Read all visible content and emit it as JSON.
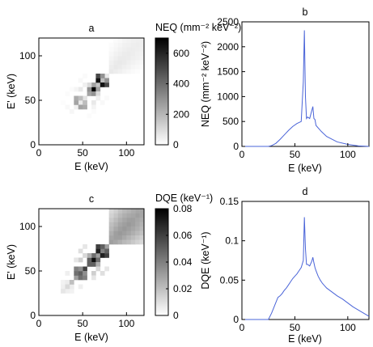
{
  "chart_data": [
    {
      "id": "a",
      "type": "heatmap",
      "title": "a",
      "colorbar_title": "NEQ (mm⁻² keV⁻²)",
      "xlabel": "E (keV)",
      "ylabel": "E' (keV)",
      "xlim": [
        0,
        120
      ],
      "ylim": [
        0,
        120
      ],
      "x_ticks": [
        "0",
        "50",
        "100"
      ],
      "y_ticks": [
        "0",
        "50",
        "100"
      ],
      "color_range": [
        0,
        700
      ],
      "colorbar_ticks": [
        "0",
        "200",
        "400",
        "600"
      ],
      "cell_size_keV": 5,
      "cells": [
        [
          25,
          45,
          8
        ],
        [
          30,
          40,
          18
        ],
        [
          35,
          35,
          25
        ],
        [
          40,
          40,
          40
        ],
        [
          45,
          45,
          60
        ],
        [
          50,
          50,
          80
        ],
        [
          55,
          55,
          250
        ],
        [
          60,
          60,
          700
        ],
        [
          65,
          65,
          160
        ],
        [
          70,
          70,
          180
        ],
        [
          75,
          75,
          60
        ],
        [
          40,
          45,
          250
        ],
        [
          45,
          40,
          250
        ],
        [
          40,
          50,
          230
        ],
        [
          50,
          40,
          230
        ],
        [
          45,
          50,
          180
        ],
        [
          50,
          45,
          180
        ],
        [
          55,
          60,
          300
        ],
        [
          60,
          55,
          300
        ],
        [
          60,
          65,
          250
        ],
        [
          65,
          60,
          250
        ],
        [
          55,
          65,
          100
        ],
        [
          65,
          55,
          100
        ],
        [
          65,
          70,
          650
        ],
        [
          70,
          65,
          650
        ],
        [
          65,
          75,
          500
        ],
        [
          75,
          65,
          500
        ],
        [
          70,
          75,
          300
        ],
        [
          75,
          70,
          300
        ],
        [
          45,
          60,
          60
        ],
        [
          60,
          45,
          60
        ],
        [
          50,
          65,
          40
        ],
        [
          65,
          50,
          40
        ],
        [
          40,
          60,
          30
        ],
        [
          60,
          40,
          30
        ],
        [
          30,
          55,
          10
        ],
        [
          55,
          30,
          10
        ],
        [
          35,
          60,
          10
        ],
        [
          60,
          35,
          10
        ],
        [
          45,
          70,
          20
        ],
        [
          70,
          45,
          20
        ],
        [
          50,
          75,
          15
        ],
        [
          75,
          50,
          15
        ],
        [
          80,
          80,
          60
        ],
        [
          85,
          85,
          60
        ],
        [
          90,
          90,
          60
        ],
        [
          95,
          95,
          55
        ],
        [
          100,
          100,
          55
        ],
        [
          105,
          105,
          50
        ],
        [
          110,
          110,
          50
        ],
        [
          115,
          115,
          45
        ],
        [
          80,
          85,
          50
        ],
        [
          85,
          80,
          50
        ],
        [
          85,
          90,
          55
        ],
        [
          90,
          85,
          55
        ],
        [
          90,
          95,
          55
        ],
        [
          95,
          90,
          55
        ],
        [
          95,
          100,
          52
        ],
        [
          100,
          95,
          52
        ],
        [
          100,
          105,
          50
        ],
        [
          105,
          100,
          50
        ],
        [
          105,
          110,
          48
        ],
        [
          110,
          105,
          48
        ],
        [
          110,
          115,
          45
        ],
        [
          115,
          110,
          45
        ],
        [
          80,
          90,
          40
        ],
        [
          90,
          80,
          40
        ],
        [
          85,
          95,
          45
        ],
        [
          95,
          85,
          45
        ],
        [
          90,
          100,
          45
        ],
        [
          100,
          90,
          45
        ],
        [
          95,
          105,
          45
        ],
        [
          105,
          95,
          45
        ],
        [
          100,
          110,
          42
        ],
        [
          110,
          100,
          42
        ],
        [
          105,
          115,
          40
        ],
        [
          115,
          105,
          40
        ],
        [
          80,
          95,
          30
        ],
        [
          95,
          80,
          30
        ],
        [
          85,
          100,
          35
        ],
        [
          100,
          85,
          35
        ],
        [
          90,
          105,
          35
        ],
        [
          105,
          90,
          35
        ],
        [
          95,
          110,
          38
        ],
        [
          110,
          95,
          38
        ],
        [
          100,
          115,
          35
        ],
        [
          115,
          100,
          35
        ],
        [
          80,
          100,
          22
        ],
        [
          100,
          80,
          22
        ],
        [
          85,
          105,
          25
        ],
        [
          105,
          85,
          25
        ],
        [
          90,
          110,
          28
        ],
        [
          110,
          90,
          28
        ],
        [
          95,
          115,
          30
        ],
        [
          115,
          95,
          30
        ],
        [
          80,
          105,
          14
        ],
        [
          105,
          80,
          14
        ],
        [
          85,
          110,
          18
        ],
        [
          110,
          85,
          18
        ],
        [
          90,
          115,
          20
        ],
        [
          115,
          90,
          20
        ],
        [
          80,
          110,
          8
        ],
        [
          110,
          80,
          8
        ],
        [
          85,
          115,
          10
        ],
        [
          115,
          85,
          10
        ]
      ]
    },
    {
      "id": "b",
      "type": "line",
      "title": "b",
      "xlabel": "E (keV)",
      "ylabel": "NEQ (mm⁻² keV⁻²)",
      "xlim": [
        0,
        120
      ],
      "ylim": [
        0,
        2500
      ],
      "x_ticks": [
        "0",
        "50",
        "100"
      ],
      "y_ticks": [
        "0",
        "500",
        "1000",
        "1500",
        "2000",
        "2500"
      ],
      "color": "#4a64d8",
      "x": [
        0,
        25,
        28,
        32,
        36,
        40,
        44,
        48,
        52,
        56,
        58,
        59,
        60,
        61,
        62,
        64,
        66,
        67,
        68,
        69,
        70,
        75,
        80,
        90,
        100,
        110,
        120
      ],
      "y": [
        0,
        0,
        15,
        60,
        140,
        230,
        320,
        400,
        460,
        500,
        1300,
        2330,
        1000,
        560,
        590,
        560,
        720,
        800,
        560,
        540,
        420,
        300,
        200,
        90,
        40,
        10,
        0
      ]
    },
    {
      "id": "c",
      "type": "heatmap",
      "title": "c",
      "colorbar_title": "DQE (keV⁻¹)",
      "xlabel": "E (keV)",
      "ylabel": "E' (keV)",
      "xlim": [
        0,
        120
      ],
      "ylim": [
        0,
        120
      ],
      "x_ticks": [
        "0",
        "50",
        "100"
      ],
      "y_ticks": [
        "0",
        "50",
        "100"
      ],
      "color_range": [
        0,
        0.08
      ],
      "colorbar_ticks": [
        "0",
        "0.02",
        "0.04",
        "0.06",
        "0.08"
      ],
      "cell_size_keV": 5,
      "cells": [
        [
          25,
          30,
          0.005
        ],
        [
          30,
          25,
          0.005
        ],
        [
          25,
          35,
          0.004
        ],
        [
          35,
          25,
          0.004
        ],
        [
          30,
          35,
          0.006
        ],
        [
          35,
          30,
          0.006
        ],
        [
          30,
          45,
          0.005
        ],
        [
          45,
          30,
          0.005
        ],
        [
          25,
          25,
          0.008
        ],
        [
          30,
          30,
          0.012
        ],
        [
          35,
          35,
          0.02
        ],
        [
          40,
          40,
          0.03
        ],
        [
          45,
          45,
          0.05
        ],
        [
          50,
          50,
          0.06
        ],
        [
          55,
          55,
          0.05
        ],
        [
          60,
          60,
          0.075
        ],
        [
          65,
          65,
          0.03
        ],
        [
          70,
          70,
          0.04
        ],
        [
          75,
          75,
          0.03
        ],
        [
          40,
          45,
          0.045
        ],
        [
          45,
          40,
          0.045
        ],
        [
          40,
          50,
          0.04
        ],
        [
          50,
          40,
          0.04
        ],
        [
          45,
          50,
          0.035
        ],
        [
          50,
          45,
          0.035
        ],
        [
          55,
          60,
          0.05
        ],
        [
          60,
          55,
          0.05
        ],
        [
          60,
          65,
          0.045
        ],
        [
          65,
          60,
          0.045
        ],
        [
          55,
          65,
          0.025
        ],
        [
          65,
          55,
          0.025
        ],
        [
          65,
          70,
          0.07
        ],
        [
          70,
          65,
          0.07
        ],
        [
          65,
          75,
          0.06
        ],
        [
          75,
          65,
          0.06
        ],
        [
          70,
          75,
          0.05
        ],
        [
          75,
          70,
          0.05
        ],
        [
          45,
          60,
          0.015
        ],
        [
          60,
          45,
          0.015
        ],
        [
          50,
          65,
          0.012
        ],
        [
          65,
          50,
          0.012
        ],
        [
          40,
          60,
          0.008
        ],
        [
          60,
          40,
          0.008
        ],
        [
          45,
          70,
          0.01
        ],
        [
          70,
          45,
          0.01
        ],
        [
          50,
          75,
          0.008
        ],
        [
          75,
          50,
          0.008
        ],
        [
          80,
          80,
          0.03
        ],
        [
          85,
          85,
          0.03
        ],
        [
          90,
          90,
          0.032
        ],
        [
          95,
          95,
          0.032
        ],
        [
          100,
          100,
          0.032
        ],
        [
          105,
          105,
          0.03
        ],
        [
          110,
          110,
          0.03
        ],
        [
          115,
          115,
          0.028
        ],
        [
          80,
          85,
          0.028
        ],
        [
          85,
          80,
          0.028
        ],
        [
          85,
          90,
          0.03
        ],
        [
          90,
          85,
          0.03
        ],
        [
          90,
          95,
          0.03
        ],
        [
          95,
          90,
          0.03
        ],
        [
          95,
          100,
          0.03
        ],
        [
          100,
          95,
          0.03
        ],
        [
          100,
          105,
          0.03
        ],
        [
          105,
          100,
          0.03
        ],
        [
          105,
          110,
          0.028
        ],
        [
          110,
          105,
          0.028
        ],
        [
          110,
          115,
          0.028
        ],
        [
          115,
          110,
          0.028
        ],
        [
          80,
          90,
          0.025
        ],
        [
          90,
          80,
          0.025
        ],
        [
          85,
          95,
          0.027
        ],
        [
          95,
          85,
          0.027
        ],
        [
          90,
          100,
          0.028
        ],
        [
          100,
          90,
          0.028
        ],
        [
          95,
          105,
          0.028
        ],
        [
          105,
          95,
          0.028
        ],
        [
          100,
          110,
          0.027
        ],
        [
          110,
          100,
          0.027
        ],
        [
          105,
          115,
          0.026
        ],
        [
          115,
          105,
          0.026
        ],
        [
          80,
          95,
          0.022
        ],
        [
          95,
          80,
          0.022
        ],
        [
          85,
          100,
          0.024
        ],
        [
          100,
          85,
          0.024
        ],
        [
          90,
          105,
          0.025
        ],
        [
          105,
          90,
          0.025
        ],
        [
          95,
          110,
          0.025
        ],
        [
          110,
          95,
          0.025
        ],
        [
          100,
          115,
          0.024
        ],
        [
          115,
          100,
          0.024
        ],
        [
          80,
          100,
          0.02
        ],
        [
          100,
          80,
          0.02
        ],
        [
          85,
          105,
          0.021
        ],
        [
          105,
          85,
          0.021
        ],
        [
          90,
          110,
          0.022
        ],
        [
          110,
          90,
          0.022
        ],
        [
          95,
          115,
          0.022
        ],
        [
          115,
          95,
          0.022
        ],
        [
          80,
          105,
          0.017
        ],
        [
          105,
          80,
          0.017
        ],
        [
          85,
          110,
          0.018
        ],
        [
          110,
          85,
          0.018
        ],
        [
          90,
          115,
          0.019
        ],
        [
          115,
          90,
          0.019
        ],
        [
          80,
          110,
          0.014
        ],
        [
          110,
          80,
          0.014
        ],
        [
          85,
          115,
          0.015
        ],
        [
          115,
          85,
          0.015
        ],
        [
          80,
          115,
          0.012
        ],
        [
          115,
          80,
          0.012
        ]
      ]
    },
    {
      "id": "d",
      "type": "line",
      "title": "d",
      "xlabel": "E (keV)",
      "ylabel": "DQE (keV⁻¹)",
      "xlim": [
        0,
        120
      ],
      "ylim": [
        0,
        0.15
      ],
      "x_ticks": [
        "0",
        "50",
        "100"
      ],
      "y_ticks": [
        "0",
        "0.05",
        "0.1",
        "0.15"
      ],
      "color": "#4a64d8",
      "x": [
        0,
        25,
        28,
        31,
        34,
        36,
        38,
        40,
        42,
        44,
        46,
        48,
        50,
        52,
        54,
        56,
        58,
        59,
        60,
        61,
        62,
        64,
        66,
        67,
        68,
        69,
        70,
        72,
        74,
        76,
        78,
        80,
        85,
        90,
        95,
        100,
        105,
        110,
        115,
        120
      ],
      "y": [
        0,
        0,
        0.008,
        0.018,
        0.028,
        0.03,
        0.033,
        0.037,
        0.04,
        0.044,
        0.048,
        0.052,
        0.055,
        0.058,
        0.062,
        0.066,
        0.075,
        0.13,
        0.09,
        0.07,
        0.07,
        0.068,
        0.074,
        0.079,
        0.072,
        0.066,
        0.062,
        0.055,
        0.05,
        0.046,
        0.043,
        0.04,
        0.035,
        0.03,
        0.026,
        0.021,
        0.016,
        0.012,
        0.008,
        0.004
      ]
    }
  ]
}
